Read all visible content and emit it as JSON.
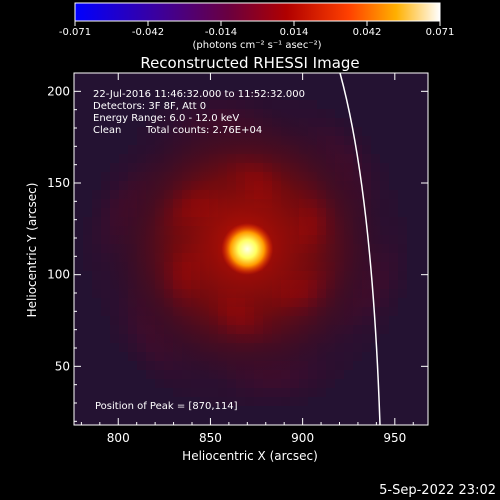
{
  "colorbar": {
    "tick_labels": [
      "-0.071",
      "-0.042",
      "-0.014",
      "0.014",
      "0.042",
      "0.071"
    ],
    "unit_text": "(photons cm⁻² s⁻¹ asec⁻²)",
    "range": [
      -0.071,
      0.071
    ]
  },
  "header": {
    "title": "Reconstructed RHESSI Image"
  },
  "info": {
    "time_range": "22-Jul-2016 11:46:32.000 to 11:52:32.000",
    "detectors": "Detectors: 3F 8F, Att 0",
    "energy_range": "Energy Range: 6.0 - 12.0 keV",
    "clean_label": "Clean",
    "total_counts": "Total counts: 2.76E+04",
    "peak_position": "Position of Peak = [870,114]"
  },
  "chart_data": {
    "type": "heatmap",
    "title": "Reconstructed RHESSI Image",
    "xlabel": "Heliocentric X (arcsec)",
    "ylabel": "Heliocentric Y (arcsec)",
    "xlim": [
      776,
      968
    ],
    "ylim": [
      18,
      210
    ],
    "x_ticks": [
      800,
      850,
      900,
      950
    ],
    "y_ticks": [
      50,
      100,
      150,
      200
    ],
    "x_tick_labels": [
      "800",
      "850",
      "900",
      "950"
    ],
    "y_tick_labels": [
      "50",
      "100",
      "150",
      "200"
    ],
    "peak": {
      "x": 870,
      "y": 114
    },
    "colormap": "hot",
    "limb_curve": "white solar limb on the right side",
    "grid": false
  },
  "footer": {
    "date_stamp": "5-Sep-2022 23:02"
  },
  "colors": {
    "background": "#000000",
    "text": "#ffffff",
    "limb": "#ffffff"
  }
}
